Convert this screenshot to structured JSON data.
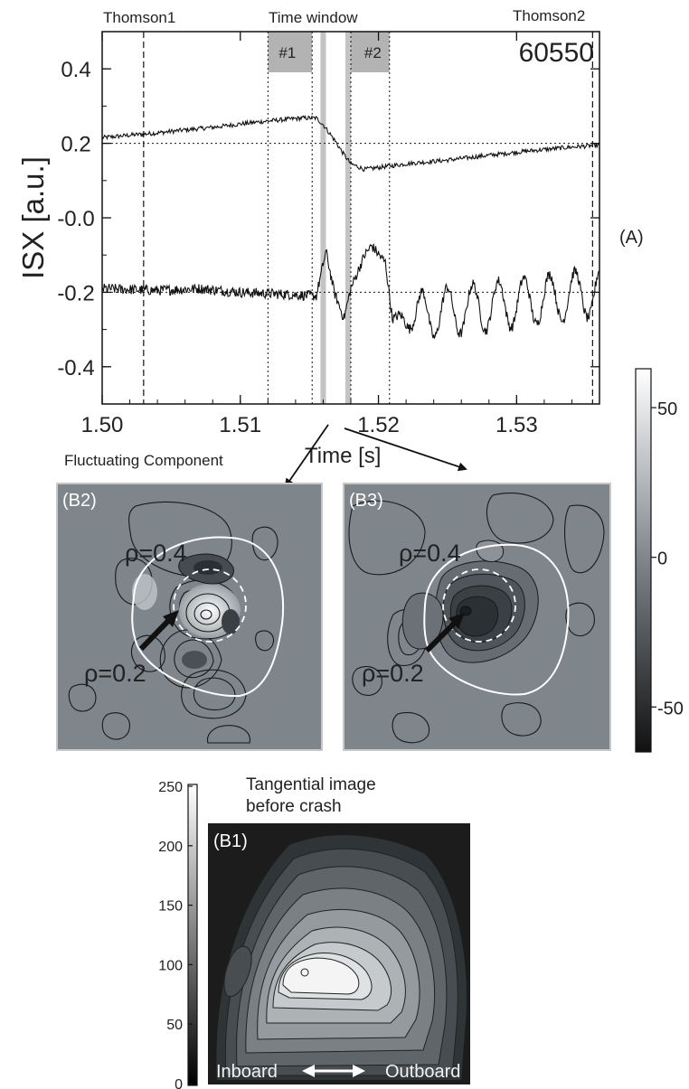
{
  "chart_data": {
    "type": "line",
    "shot": "60550",
    "panel_label": "(A)",
    "xlabel": "Time [s]",
    "ylabel": "ISX [a.u.]",
    "xlim": [
      1.5,
      1.536
    ],
    "ylim": [
      -0.5,
      0.5
    ],
    "xticks": [
      "1.50",
      "1.51",
      "1.52",
      "1.53"
    ],
    "xtick_values": [
      1.5,
      1.51,
      1.52,
      1.53
    ],
    "yticks": [
      "0.4",
      "0.2",
      "-0.0",
      "-0.2",
      "-0.4"
    ],
    "ytick_values": [
      0.4,
      0.2,
      0.0,
      -0.2,
      -0.4
    ],
    "reference_lines_y": [
      0.2,
      -0.2
    ],
    "thomson": {
      "label1": "Thomson1",
      "t1": 1.503,
      "label2": "Thomson2",
      "t2": 1.5355
    },
    "time_window": {
      "title": "Time window",
      "windows": [
        {
          "label": "#1",
          "start": 1.512,
          "end": 1.5152
        },
        {
          "label": "#2",
          "start": 1.518,
          "end": 1.5208
        }
      ],
      "crash_bands": [
        1.516,
        1.5178
      ]
    },
    "series": [
      {
        "points": [
          [
            1.5,
            0.215
          ],
          [
            1.502,
            0.222
          ],
          [
            1.504,
            0.228
          ],
          [
            1.506,
            0.236
          ],
          [
            1.508,
            0.243
          ],
          [
            1.51,
            0.252
          ],
          [
            1.512,
            0.26
          ],
          [
            1.5145,
            0.268
          ],
          [
            1.5155,
            0.268
          ],
          [
            1.516,
            0.25
          ],
          [
            1.5168,
            0.21
          ],
          [
            1.5175,
            0.17
          ],
          [
            1.518,
            0.145
          ],
          [
            1.519,
            0.13
          ],
          [
            1.52,
            0.135
          ],
          [
            1.521,
            0.14
          ],
          [
            1.522,
            0.145
          ],
          [
            1.525,
            0.155
          ],
          [
            1.528,
            0.168
          ],
          [
            1.531,
            0.18
          ],
          [
            1.534,
            0.19
          ],
          [
            1.536,
            0.195
          ]
        ]
      },
      {
        "points": [
          [
            1.5,
            -0.19
          ],
          [
            1.504,
            -0.195
          ],
          [
            1.507,
            -0.19
          ],
          [
            1.51,
            -0.2
          ],
          [
            1.513,
            -0.205
          ],
          [
            1.5155,
            -0.21
          ],
          [
            1.5162,
            -0.09
          ],
          [
            1.5168,
            -0.2
          ],
          [
            1.5175,
            -0.27
          ],
          [
            1.518,
            -0.19
          ],
          [
            1.519,
            -0.1
          ],
          [
            1.5195,
            -0.075
          ],
          [
            1.5205,
            -0.12
          ],
          [
            1.521,
            -0.27
          ],
          [
            1.536,
            -0.2
          ]
        ]
      }
    ],
    "oscillation": {
      "period_s": 0.00185,
      "amplitude": 0.065
    },
    "arrow_targets": [
      "(B2)",
      "(B3)"
    ]
  },
  "panel_b": {
    "section_title": "Fluctuating Component",
    "b2_label": "(B2)",
    "b3_label": "(B3)",
    "rho_outer": "ρ=0.4",
    "rho_inner": "ρ=0.2",
    "colorbar_ticks": [
      "50",
      "0",
      "-50"
    ],
    "colorbar_values": [
      50,
      0,
      -50
    ],
    "colorbar_range": [
      -65,
      63
    ],
    "colors": {
      "map_background": "#7e858b",
      "positive": "#e8ecee",
      "negative": "#2a2f33",
      "contour": "#1a1a1a",
      "flux_surface": "#ffffff"
    }
  },
  "panel_b1": {
    "label": "(B1)",
    "title_line1": "Tangential image",
    "title_line2": "before crash",
    "inboard": "Inboard",
    "outboard": "Outboard",
    "colorbar_ticks": [
      "250",
      "200",
      "150",
      "100",
      "50",
      "0"
    ],
    "colorbar_values": [
      250,
      200,
      150,
      100,
      50,
      0
    ],
    "colors": {
      "background": "#1c1c1c",
      "core": "#f4f4f4"
    }
  }
}
